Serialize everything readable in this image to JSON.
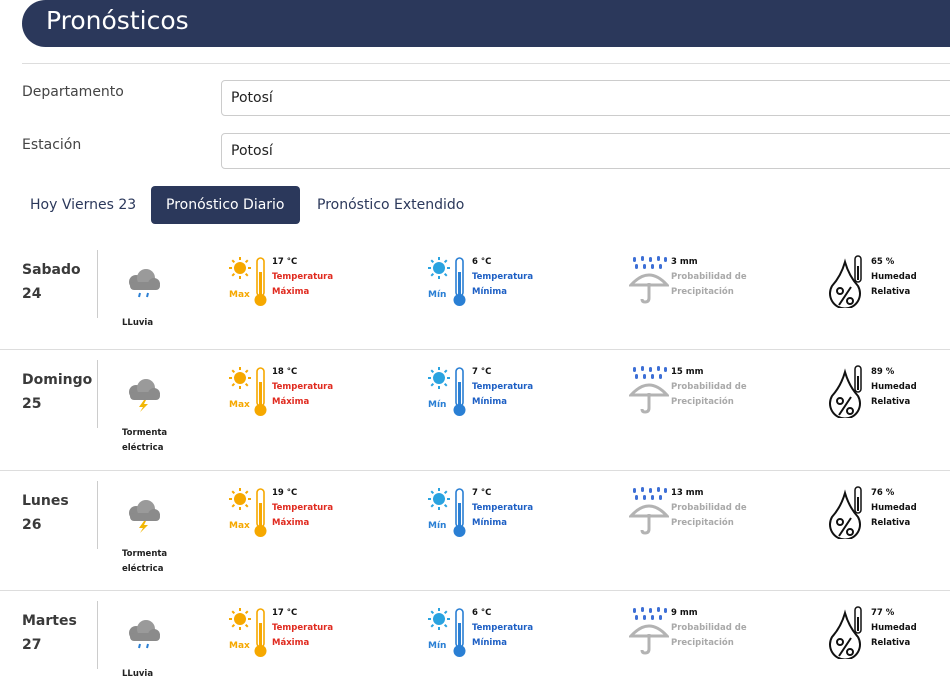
{
  "header": {
    "title": "Pronósticos"
  },
  "filters": [
    {
      "label": "Departamento",
      "value": "Potosí"
    },
    {
      "label": "Estación",
      "value": "Potosí"
    }
  ],
  "tabs": [
    "Hoy Viernes 23",
    "Pronóstico Diario",
    "Pronóstico Extendido"
  ],
  "labels": {
    "temperature": "Temperatura",
    "maximum": "Máxima",
    "minimum": "Mínima",
    "max_icon": "Max",
    "min_icon": "Mín",
    "precip_1": "Probabilidad de",
    "precip_2": "Precipitación",
    "humidity_1": "Humedad",
    "humidity_2": "Relativa"
  },
  "days": [
    {
      "day": "Sabado",
      "date": "24",
      "condition": "LLuvia",
      "icon": "rain",
      "max": "17 °C",
      "min": "6 °C",
      "precipitation": "3 mm",
      "humidity": "65 %"
    },
    {
      "day": "Domingo",
      "date": "25",
      "condition": "Tormenta eléctrica",
      "icon": "storm",
      "max": "18 °C",
      "min": "7 °C",
      "precipitation": "15 mm",
      "humidity": "89 %"
    },
    {
      "day": "Lunes",
      "date": "26",
      "condition": "Tormenta eléctrica",
      "icon": "storm",
      "max": "19 °C",
      "min": "7 °C",
      "precipitation": "13 mm",
      "humidity": "76 %"
    },
    {
      "day": "Martes",
      "date": "27",
      "condition": "LLuvia",
      "icon": "rain",
      "max": "17 °C",
      "min": "6 °C",
      "precipitation": "9 mm",
      "humidity": "77 %"
    }
  ]
}
